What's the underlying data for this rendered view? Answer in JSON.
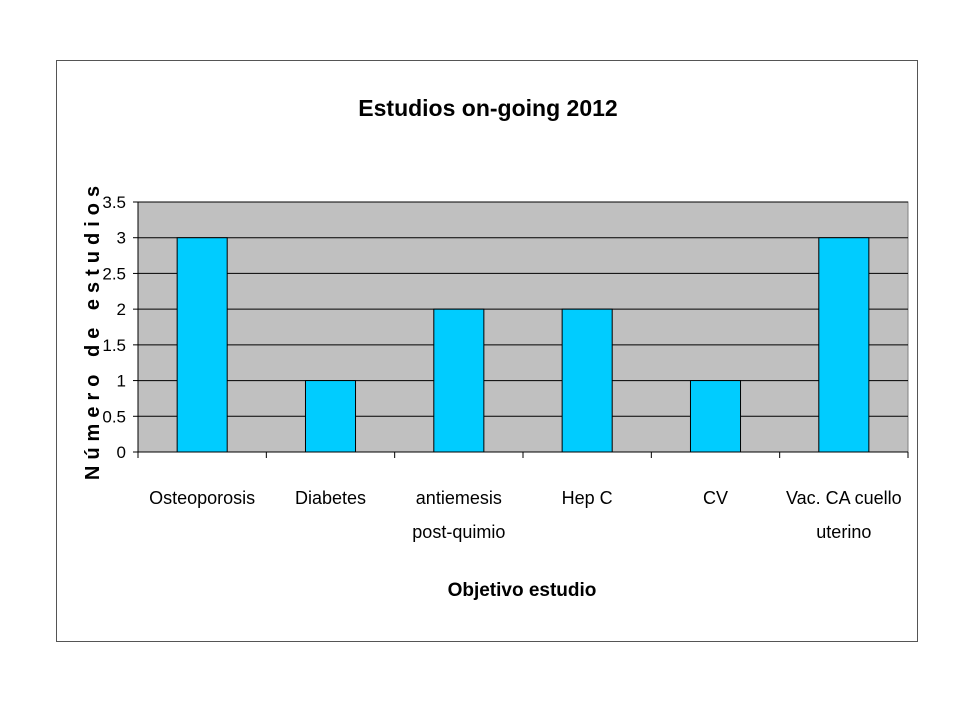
{
  "chart_data": {
    "type": "bar",
    "title": "Estudios on-going 2012",
    "xlabel": "Objetivo estudio",
    "ylabel": "Número de estudios",
    "categories": [
      [
        "Osteoporosis"
      ],
      [
        "Diabetes"
      ],
      [
        "antiemesis",
        "post-quimio"
      ],
      [
        "Hep C"
      ],
      [
        "CV"
      ],
      [
        "Vac. CA cuello",
        "uterino"
      ]
    ],
    "values": [
      3,
      1,
      2,
      2,
      1,
      3
    ],
    "ylim": [
      0,
      3.5
    ],
    "yticks": [
      "0",
      "0.5",
      "1",
      "1.5",
      "2",
      "2.5",
      "3",
      "3.5"
    ],
    "grid": true,
    "legend": "none",
    "colors": {
      "bar": "#00ccff",
      "plot_background": "#c0c0c0",
      "gridline": "#000000"
    }
  }
}
